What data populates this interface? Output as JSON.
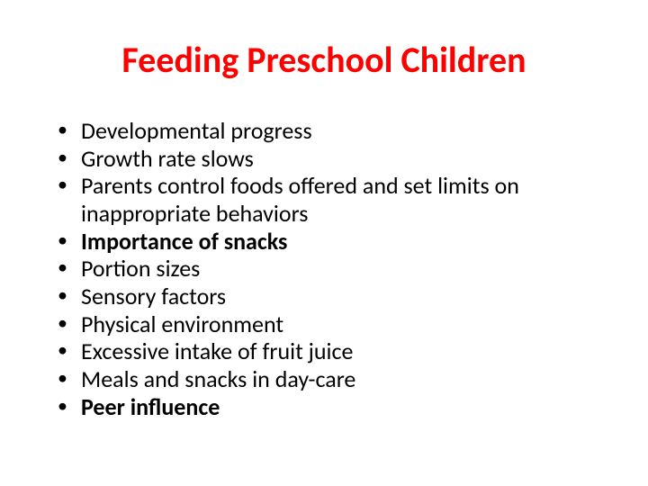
{
  "title": {
    "text": "Feeding Preschool Children",
    "color": "#ff0000",
    "fontsize": 40,
    "fontweight": 700
  },
  "bullets": {
    "fontsize": 26,
    "text_color": "#000000",
    "items": [
      {
        "text": "Developmental progress",
        "bold": false
      },
      {
        "text": "Growth rate slows",
        "bold": false
      },
      {
        "text": "Parents control foods offered and set limits on inappropriate behaviors",
        "bold": false
      },
      {
        "text": "Importance of snacks",
        "bold": true
      },
      {
        "text": "Portion sizes",
        "bold": false
      },
      {
        "text": "Sensory factors",
        "bold": false
      },
      {
        "text": "Physical environment",
        "bold": false
      },
      {
        "text": "Excessive intake of fruit juice",
        "bold": false
      },
      {
        "text": "Meals and snacks in day-care",
        "bold": false
      },
      {
        "text": "Peer influence",
        "bold": true
      }
    ]
  },
  "background_color": "#ffffff"
}
